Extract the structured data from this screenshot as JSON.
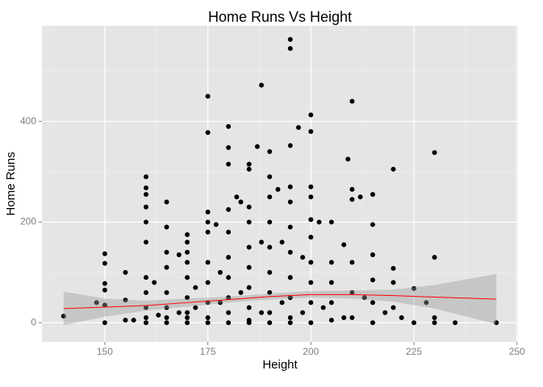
{
  "chart_data": {
    "type": "scatter",
    "title": "Home Runs Vs Height",
    "xlabel": "Height",
    "ylabel": "Home Runs",
    "xlim": [
      134.75,
      250.25
    ],
    "ylim": [
      -38,
      590
    ],
    "xticks": [
      150,
      175,
      200,
      225,
      250
    ],
    "yticks": [
      0,
      200,
      400
    ],
    "xminor": [
      137.5,
      162.5,
      187.5,
      212.5,
      237.5
    ],
    "yminor": [
      100,
      300,
      500
    ],
    "grid": true,
    "series": [
      {
        "color": "#000000",
        "x": [
          140,
          148,
          150,
          150,
          150,
          150,
          150,
          150,
          155,
          155,
          155,
          157,
          160,
          160,
          160,
          160,
          160,
          160,
          160,
          160,
          160,
          160,
          162,
          165,
          165,
          165,
          165,
          165,
          165,
          165,
          168,
          170,
          170,
          170,
          170,
          170,
          170,
          170,
          170,
          172,
          175,
          175,
          175,
          175,
          175,
          175,
          175,
          175,
          175,
          177,
          178,
          180,
          180,
          180,
          180,
          180,
          180,
          180,
          180,
          180,
          180,
          182,
          183,
          185,
          185,
          185,
          185,
          185,
          185,
          185,
          185,
          185,
          187,
          188,
          188,
          190,
          190,
          190,
          190,
          190,
          190,
          190,
          190,
          190,
          192,
          193,
          195,
          195,
          195,
          195,
          195,
          195,
          195,
          195,
          195,
          195,
          197,
          198,
          200,
          200,
          200,
          200,
          200,
          200,
          200,
          200,
          200,
          200,
          202,
          205,
          205,
          205,
          205,
          205,
          208,
          209,
          210,
          210,
          210,
          210,
          210,
          210,
          212,
          215,
          215,
          215,
          215,
          215,
          215,
          218,
          220,
          220,
          220,
          220,
          222,
          225,
          225,
          228,
          230,
          230,
          230,
          230,
          235,
          245,
          165,
          170,
          175,
          185,
          195,
          160,
          178,
          183,
          188,
          193,
          198,
          203,
          208,
          213,
          168,
          172,
          163
        ],
        "values": [
          13,
          40,
          137,
          118,
          78,
          65,
          35,
          0,
          100,
          45,
          5,
          5,
          290,
          268,
          255,
          230,
          200,
          160,
          90,
          60,
          30,
          10,
          80,
          240,
          190,
          140,
          110,
          60,
          30,
          10,
          135,
          175,
          160,
          140,
          120,
          90,
          50,
          20,
          0,
          70,
          450,
          378,
          220,
          200,
          180,
          120,
          80,
          40,
          10,
          195,
          100,
          390,
          348,
          315,
          225,
          180,
          130,
          90,
          50,
          20,
          0,
          250,
          240,
          315,
          305,
          230,
          200,
          150,
          110,
          70,
          30,
          5,
          350,
          472,
          160,
          340,
          290,
          250,
          200,
          150,
          100,
          60,
          20,
          0,
          265,
          160,
          563,
          545,
          352,
          270,
          240,
          190,
          140,
          90,
          50,
          10,
          388,
          130,
          413,
          380,
          270,
          250,
          205,
          170,
          120,
          80,
          40,
          0,
          200,
          200,
          120,
          80,
          40,
          5,
          155,
          325,
          440,
          265,
          245,
          120,
          60,
          10,
          250,
          255,
          195,
          135,
          85,
          40,
          0,
          20,
          305,
          108,
          80,
          30,
          10,
          68,
          0,
          40,
          338,
          130,
          10,
          0,
          0,
          0,
          0,
          10,
          0,
          0,
          0,
          0,
          40,
          60,
          20,
          40,
          20,
          30,
          10,
          50,
          20,
          30,
          15
        ]
      }
    ],
    "smooth": {
      "color": "#ff0000",
      "fill": "#999999",
      "x": [
        140,
        150,
        160,
        170,
        180,
        190,
        200,
        210,
        220,
        230,
        245
      ],
      "values": [
        28,
        31,
        34,
        40,
        46,
        52,
        56,
        56,
        54,
        51,
        47
      ],
      "lower": [
        -5,
        12,
        24,
        32,
        40,
        46,
        50,
        48,
        42,
        28,
        -3
      ],
      "upper": [
        62,
        48,
        44,
        48,
        52,
        58,
        63,
        64,
        66,
        75,
        97
      ]
    }
  }
}
